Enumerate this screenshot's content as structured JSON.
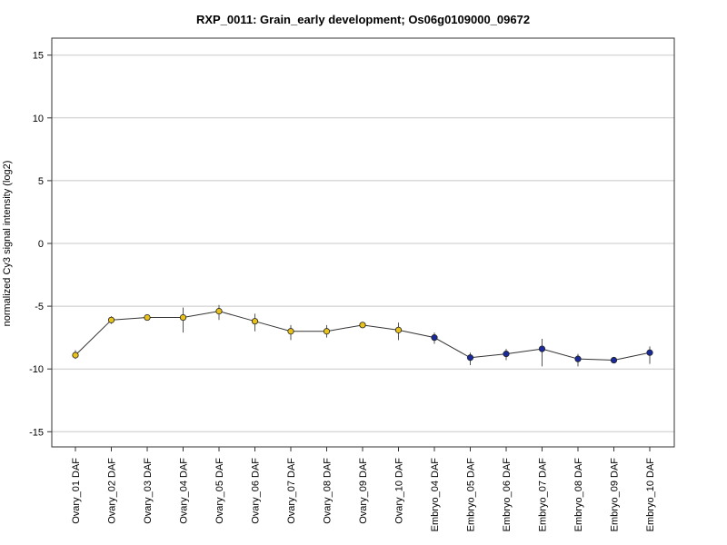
{
  "chart_data": {
    "type": "line",
    "title": "RXP_0011: Grain_early development; Os06g0109000_09672",
    "xlabel": "",
    "ylabel": "normalized Cy3 signal intensity (log2)",
    "ylim": [
      -16,
      16
    ],
    "yticks": [
      15,
      10,
      5,
      0,
      -5,
      -10,
      -15
    ],
    "grid": true,
    "categories": [
      "Ovary_01 DAF",
      "Ovary_02 DAF",
      "Ovary_03 DAF",
      "Ovary_04 DAF",
      "Ovary_05 DAF",
      "Ovary_06 DAF",
      "Ovary_07 DAF",
      "Ovary_08 DAF",
      "Ovary_09 DAF",
      "Ovary_10 DAF",
      "Embryo_04 DAF",
      "Embryo_05 DAF",
      "Embryo_06 DAF",
      "Embryo_07 DAF",
      "Embryo_08 DAF",
      "Embryo_09 DAF",
      "Embryo_10 DAF"
    ],
    "series": [
      {
        "values": [
          -8.9,
          -6.1,
          -5.9,
          -5.9,
          -5.4,
          -6.2,
          -7.0,
          -7.0,
          -6.5,
          -6.9,
          -7.5,
          -9.1,
          -8.8,
          -8.4,
          -9.2,
          -9.3,
          -8.7
        ],
        "err_low": [
          -9.2,
          -6.4,
          -6.1,
          -7.1,
          -6.1,
          -7.0,
          -7.7,
          -7.5,
          -6.7,
          -7.7,
          -8.0,
          -9.7,
          -9.3,
          -9.8,
          -9.8,
          -9.4,
          -9.6
        ],
        "err_high": [
          -8.5,
          -5.8,
          -5.7,
          -5.1,
          -4.9,
          -5.6,
          -6.5,
          -6.5,
          -6.3,
          -6.3,
          -7.1,
          -8.7,
          -8.4,
          -7.6,
          -8.8,
          -9.1,
          -8.2
        ],
        "point_colors": [
          "#e8c21a",
          "#e8c21a",
          "#e8c21a",
          "#e8c21a",
          "#e8c21a",
          "#e8c21a",
          "#e8c21a",
          "#e8c21a",
          "#e8c21a",
          "#e8c21a",
          "#1a2a9c",
          "#1a2a9c",
          "#1a2a9c",
          "#1a2a9c",
          "#1a2a9c",
          "#1a2a9c",
          "#1a2a9c"
        ]
      }
    ],
    "colors": {
      "ovary": "#e8c21a",
      "embryo": "#1a2a9c",
      "line": "#333333",
      "grid": "#c8c8c8",
      "error": "#555555"
    }
  }
}
